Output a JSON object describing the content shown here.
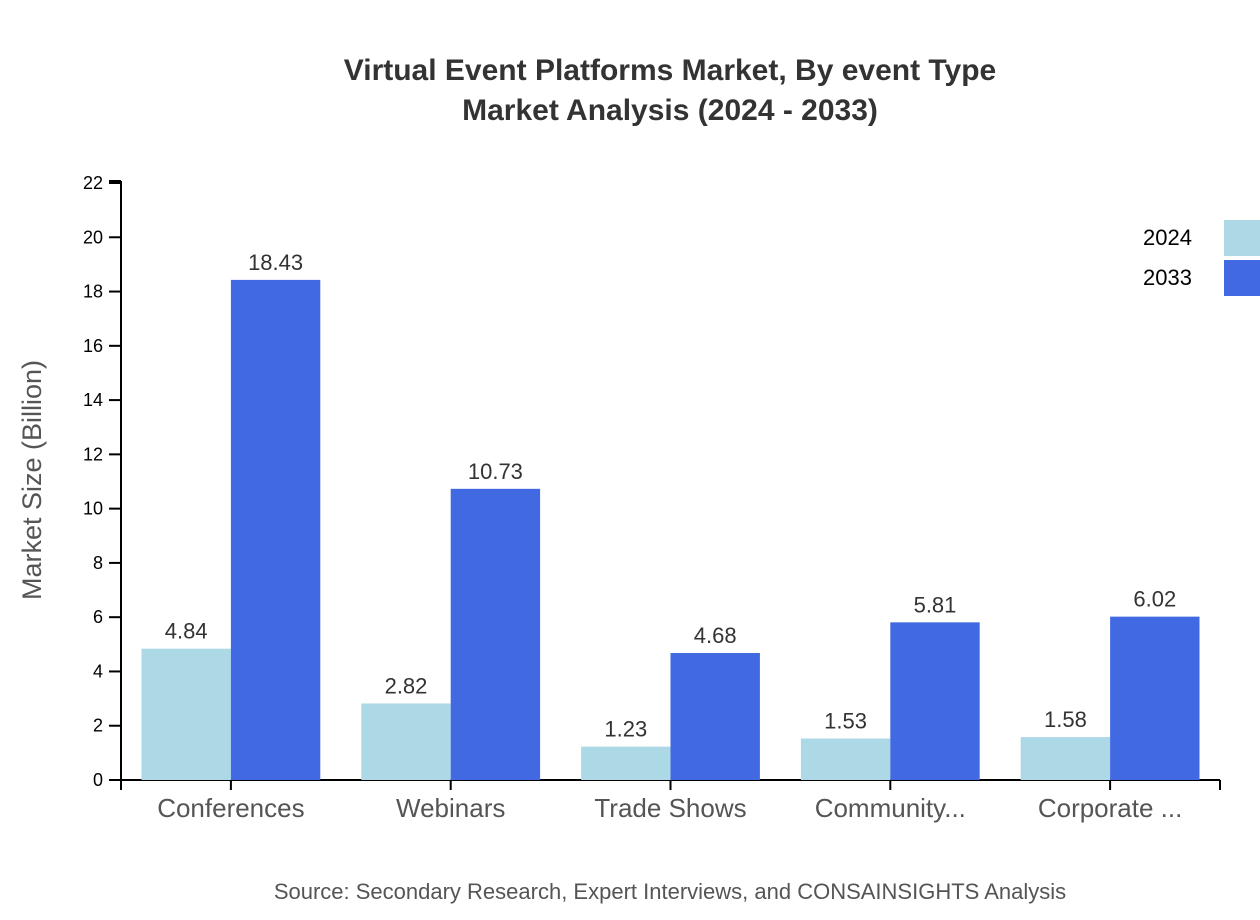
{
  "chart": {
    "title_line1": "Virtual Event Platforms Market, By event Type",
    "title_line2": "Market Analysis (2024 - 2033)",
    "ylabel": "Market Size (Billion)",
    "source": "Source: Secondary Research, Expert Interviews, and CONSAINSIGHTS Analysis"
  },
  "legend": [
    {
      "label": "2024",
      "color": "#add8e6"
    },
    {
      "label": "2033",
      "color": "#4169e1"
    }
  ],
  "chart_data": {
    "type": "bar",
    "title": "Virtual Event Platforms Market, By event Type\nMarket Analysis (2024 - 2033)",
    "xlabel": "",
    "ylabel": "Market Size (Billion)",
    "categories": [
      "Conferences",
      "Webinars",
      "Trade Shows",
      "Community...",
      "Corporate ..."
    ],
    "series": [
      {
        "name": "2024",
        "color": "#add8e6",
        "values": [
          4.84,
          2.82,
          1.23,
          1.53,
          1.58
        ]
      },
      {
        "name": "2033",
        "color": "#4169e1",
        "values": [
          18.43,
          10.73,
          4.68,
          5.81,
          6.02
        ]
      }
    ],
    "ylim": [
      0,
      22
    ],
    "yticks": [
      0,
      2,
      4,
      6,
      8,
      10,
      12,
      14,
      16,
      18,
      20,
      22
    ],
    "grid": false,
    "legend_position": "top-right",
    "source": "Source: Secondary Research, Expert Interviews, and CONSAINSIGHTS Analysis"
  }
}
